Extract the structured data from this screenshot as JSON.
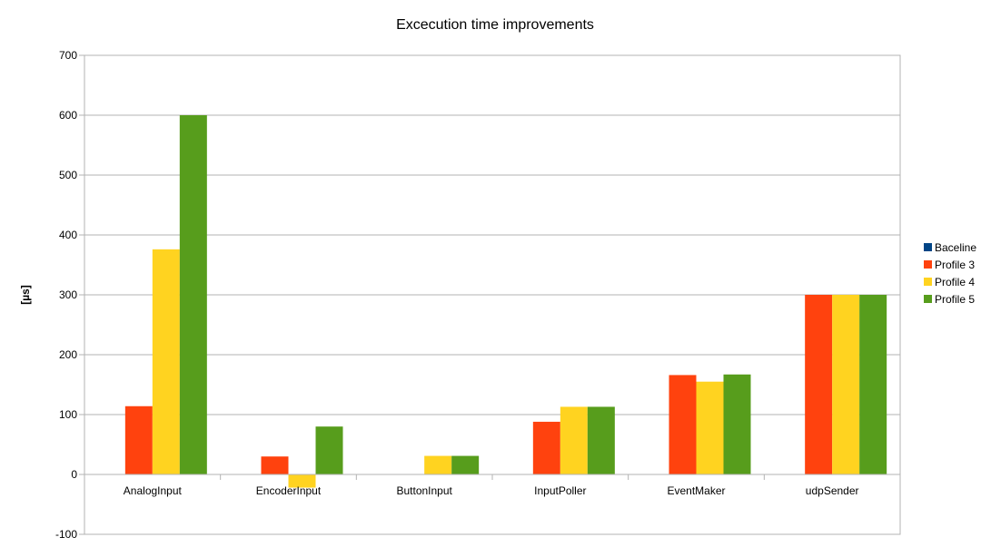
{
  "chart_data": {
    "type": "bar",
    "title": "Excecution time improvements",
    "xlabel": "",
    "ylabel": "[µs]",
    "ylim": [
      -100,
      700
    ],
    "yticks": [
      -100,
      0,
      100,
      200,
      300,
      400,
      500,
      600,
      700
    ],
    "grid": true,
    "legend_position": "right",
    "categories": [
      "AnalogInput",
      "EncoderInput",
      "ButtonInput",
      "InputPoller",
      "EventMaker",
      "udpSender"
    ],
    "series": [
      {
        "name": "Baceline",
        "color": "#004586",
        "values": [
          0,
          0,
          0,
          0,
          0,
          0
        ]
      },
      {
        "name": "Profile 3",
        "color": "#ff420e",
        "values": [
          114,
          30,
          0,
          88,
          166,
          300
        ]
      },
      {
        "name": "Profile 4",
        "color": "#ffd320",
        "values": [
          376,
          -22,
          31,
          113,
          155,
          300
        ]
      },
      {
        "name": "Profile 5",
        "color": "#579d1c",
        "values": [
          600,
          80,
          31,
          113,
          167,
          300
        ]
      }
    ]
  }
}
